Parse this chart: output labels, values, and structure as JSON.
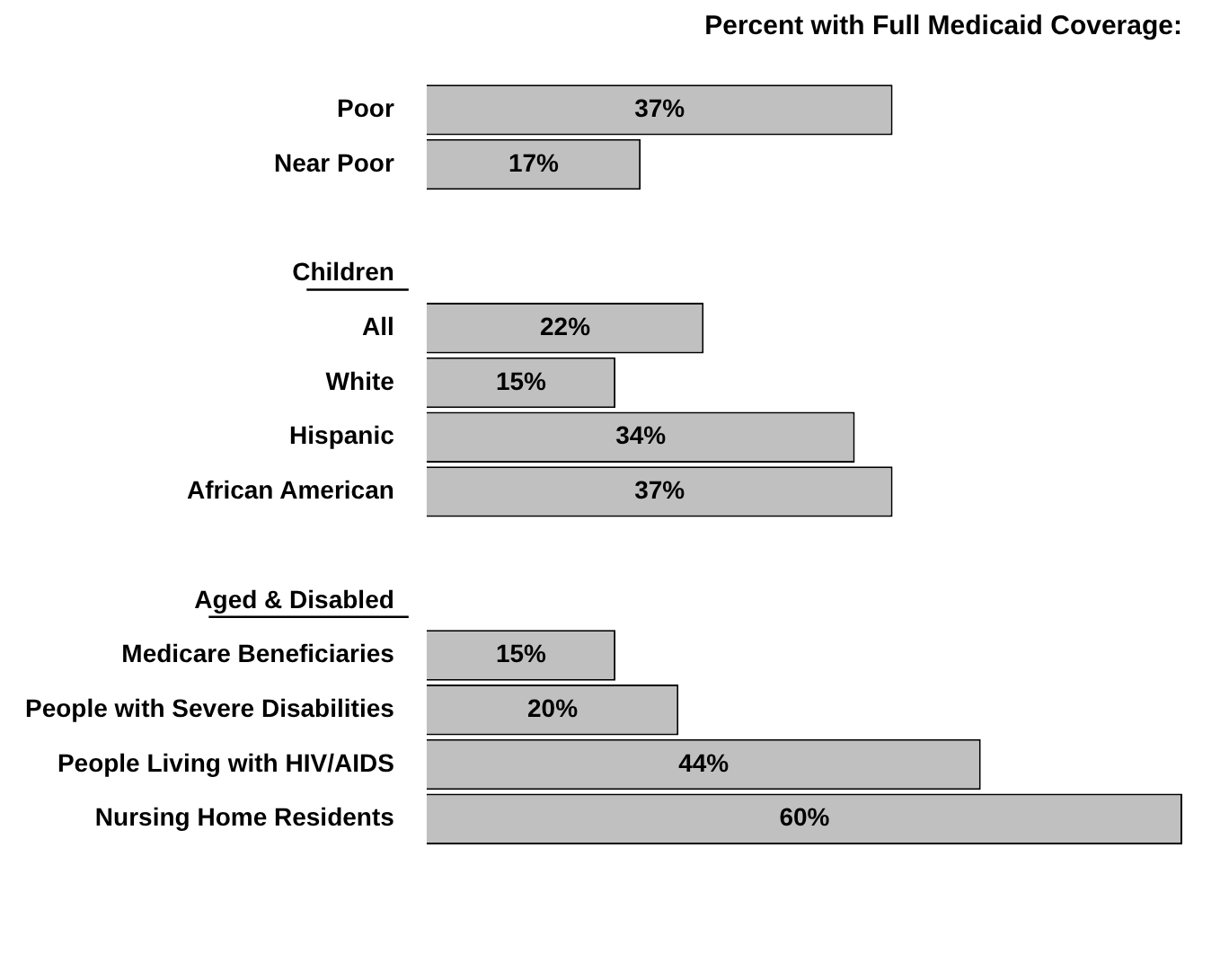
{
  "chart_data": {
    "type": "bar",
    "orientation": "horizontal",
    "title": "Percent with Full Medicaid Coverage:",
    "categories": [
      "Poor",
      "Near Poor",
      null,
      "Children",
      "All",
      "White",
      "Hispanic",
      "African American",
      null,
      "Aged & Disabled",
      "Medicare Beneficiaries",
      "People with Severe Disabilities",
      "People Living with HIV/AIDS",
      "Nursing Home Residents"
    ],
    "values": [
      37,
      17,
      null,
      null,
      22,
      15,
      34,
      37,
      null,
      null,
      15,
      20,
      44,
      60
    ],
    "value_labels": [
      "37%",
      "17%",
      null,
      null,
      "22%",
      "15%",
      "34%",
      "37%",
      null,
      null,
      "15%",
      "20%",
      "44%",
      "60%"
    ],
    "color": "#c0c0c0",
    "grid": false,
    "legend": false
  }
}
